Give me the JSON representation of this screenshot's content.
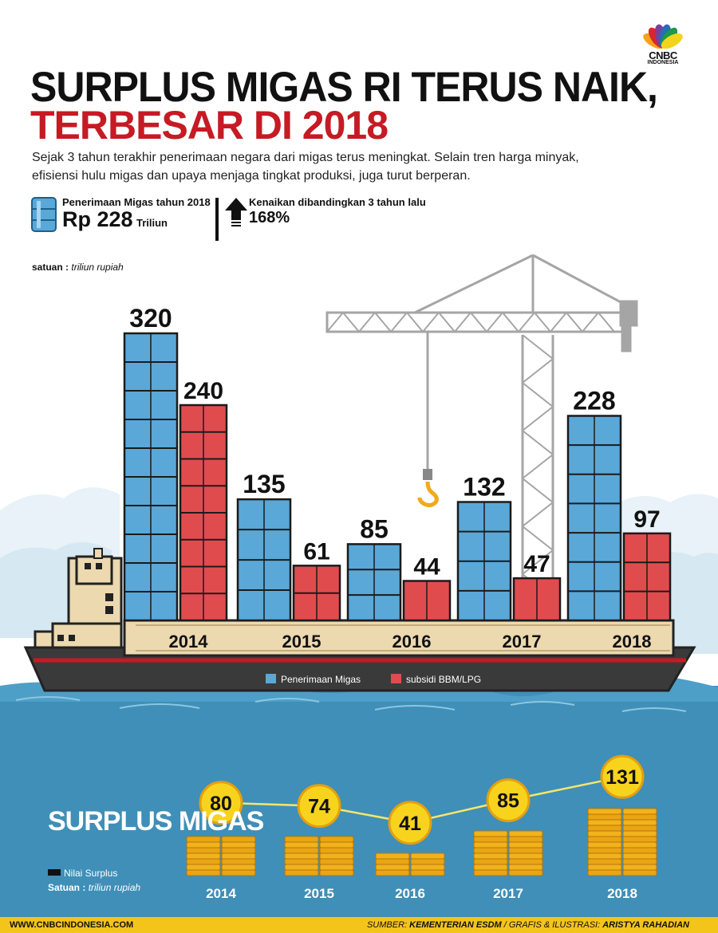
{
  "brand": {
    "name": "CNBC",
    "sub": "INDONESIA",
    "colors": [
      "#f6a21a",
      "#d9262a",
      "#7b3f98",
      "#2a6bb6",
      "#1a9a4a",
      "#f3d31c"
    ]
  },
  "title": {
    "line1": "SURPLUS MIGAS RI TERUS NAIK,",
    "line2": "TERBESAR DI 2018"
  },
  "intro": "Sejak 3 tahun terakhir penerimaan negara dari migas terus meningkat. Selain tren harga minyak, efisiensi hulu migas dan upaya menjaga tingkat produksi, juga turut berperan.",
  "kpi": {
    "receipt_label": "Penerimaan Migas tahun 2018",
    "receipt_value": "Rp 228",
    "receipt_unit": "Triliun",
    "rise_label": "Kenaikan dibandingkan 3 tahun lalu",
    "rise_value": "168%"
  },
  "unit_label": "satuan :",
  "unit_value": "triliun rupiah",
  "colors": {
    "receipt": "#5aa8d8",
    "subsidy": "#e04c4e",
    "sea": "#3f8fb8",
    "coin": "#f2b21c",
    "accent_red": "#c61a24"
  },
  "chart_data": [
    {
      "type": "bar",
      "categories": [
        "2014",
        "2015",
        "2016",
        "2017",
        "2018"
      ],
      "series": [
        {
          "name": "Penerimaan Migas",
          "values": [
            320,
            135,
            85,
            132,
            228
          ],
          "labels": [
            "320",
            "135",
            "85",
            "132",
            "228"
          ]
        },
        {
          "name": "subsidi BBM/LPG",
          "values": [
            240,
            61,
            44,
            47,
            97
          ],
          "labels": [
            "240",
            "61",
            "44",
            "47",
            "97"
          ]
        }
      ],
      "ylim": [
        0,
        320
      ]
    },
    {
      "type": "line",
      "title": "SURPLUS MIGAS",
      "legend": "Nilai Surplus",
      "unit_label": "Satuan :",
      "unit_value": "triliun rupiah",
      "categories": [
        "2014",
        "2015",
        "2016",
        "2017",
        "2018"
      ],
      "values": [
        80,
        74,
        41,
        85,
        131
      ],
      "labels": [
        "80",
        "74",
        "41",
        "85",
        "131"
      ]
    }
  ],
  "footer": {
    "website": "WWW.CNBCINDONESIA.COM",
    "source_label": "SUMBER:",
    "source": "KEMENTERIAN ESDM",
    "sep": "/",
    "credit_label": "GRAFIS & ILUSTRASI:",
    "credit": "ARISTYA RAHADIAN"
  }
}
